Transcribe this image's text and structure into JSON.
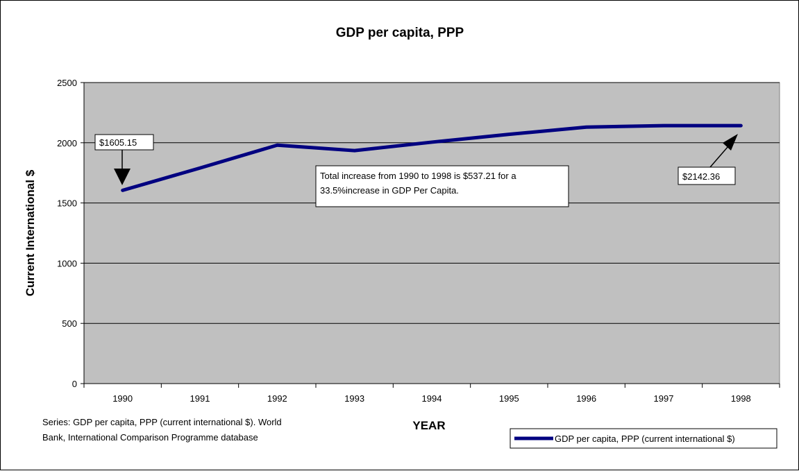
{
  "chart_data": {
    "type": "line",
    "title": "GDP per capita, PPP",
    "xlabel": "YEAR",
    "ylabel": "Current International $",
    "categories": [
      "1990",
      "1991",
      "1992",
      "1993",
      "1994",
      "1995",
      "1996",
      "1997",
      "1998"
    ],
    "series": [
      {
        "name": "GDP per capita, PPP (current international $)",
        "values": [
          1605.15,
          1790,
          1980,
          1935,
          2005,
          2070,
          2130,
          2142,
          2142.36
        ],
        "color": "#000080"
      }
    ],
    "ylim": [
      0,
      2500
    ],
    "yticks": [
      "0",
      "500",
      "1000",
      "1500",
      "2000",
      "2500"
    ],
    "grid": true,
    "plot_background": "#C0C0C0",
    "legend_position": "bottom-right",
    "annotations": [
      {
        "id": "start",
        "text": "$1605.15"
      },
      {
        "id": "end",
        "text": "$2142.36"
      },
      {
        "id": "summary",
        "lines": [
          "Total increase from 1990 to 1998 is $537.21 for a",
          "33.5%increase in GDP Per Capita."
        ]
      }
    ],
    "source": [
      "Series: GDP per capita, PPP (current international $). World",
      "Bank, International Comparison Programme database"
    ]
  }
}
